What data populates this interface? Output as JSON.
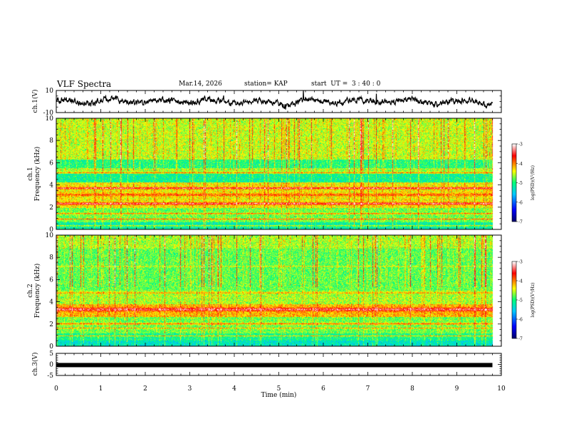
{
  "header": {
    "title": "VLF Spectra",
    "date": "Mar.14, 2026",
    "station": "station= KAP",
    "start": "start  UT =  3 : 40 : 0"
  },
  "chart_data": [
    {
      "type": "line",
      "panel": "ch1-waveform",
      "ylabel": "ch.1(V)",
      "ylim": [
        -10,
        10
      ],
      "yticks": [
        "10",
        "-10"
      ],
      "xlim": [
        0,
        10
      ],
      "trace_end_min": 9.8,
      "baseline": 0
    },
    {
      "type": "heatmap",
      "panel": "ch1-spectrogram",
      "ylabel_top": "ch.1",
      "ylabel": "Frequency  (kHz)",
      "ylim": [
        0,
        10
      ],
      "yticks": [
        "0",
        "2",
        "4",
        "6",
        "8",
        "10"
      ],
      "xlim": [
        0,
        10
      ],
      "data_end_min": 9.8,
      "colorbar": {
        "label": "log(PSD)(V²/Hz)",
        "range": [
          -7,
          -3
        ],
        "ticks": [
          "-3",
          "-4",
          "-5",
          "-6",
          "-7"
        ]
      }
    },
    {
      "type": "heatmap",
      "panel": "ch2-spectrogram",
      "ylabel_top": "ch.2",
      "ylabel": "Frequency  (kHz)",
      "ylim": [
        0,
        10
      ],
      "yticks": [
        "0",
        "2",
        "4",
        "6",
        "8",
        "10"
      ],
      "xlim": [
        0,
        10
      ],
      "data_end_min": 9.8,
      "colorbar": {
        "label": "log(PSD)(V²/Hz)",
        "range": [
          -7,
          -3
        ],
        "ticks": [
          "-3",
          "-4",
          "-5",
          "-6",
          "-7"
        ]
      }
    },
    {
      "type": "line",
      "panel": "ch3-waveform",
      "ylabel": "ch.3(V)",
      "ylim": [
        -5,
        5
      ],
      "yticks": [
        "5",
        "0",
        "-5"
      ],
      "xlim": [
        0,
        10
      ],
      "constant_value": -0.3,
      "data_end_min": 9.8
    }
  ],
  "xaxis": {
    "label": "Time  (min)",
    "ticks": [
      "0",
      "1",
      "2",
      "3",
      "4",
      "5",
      "6",
      "7",
      "8",
      "9",
      "10"
    ]
  },
  "colors": {
    "trace": "#000000",
    "colormap": [
      "#000080",
      "#0000ff",
      "#00c0ff",
      "#00ff80",
      "#ffff00",
      "#ff0000",
      "#ffffff"
    ]
  }
}
